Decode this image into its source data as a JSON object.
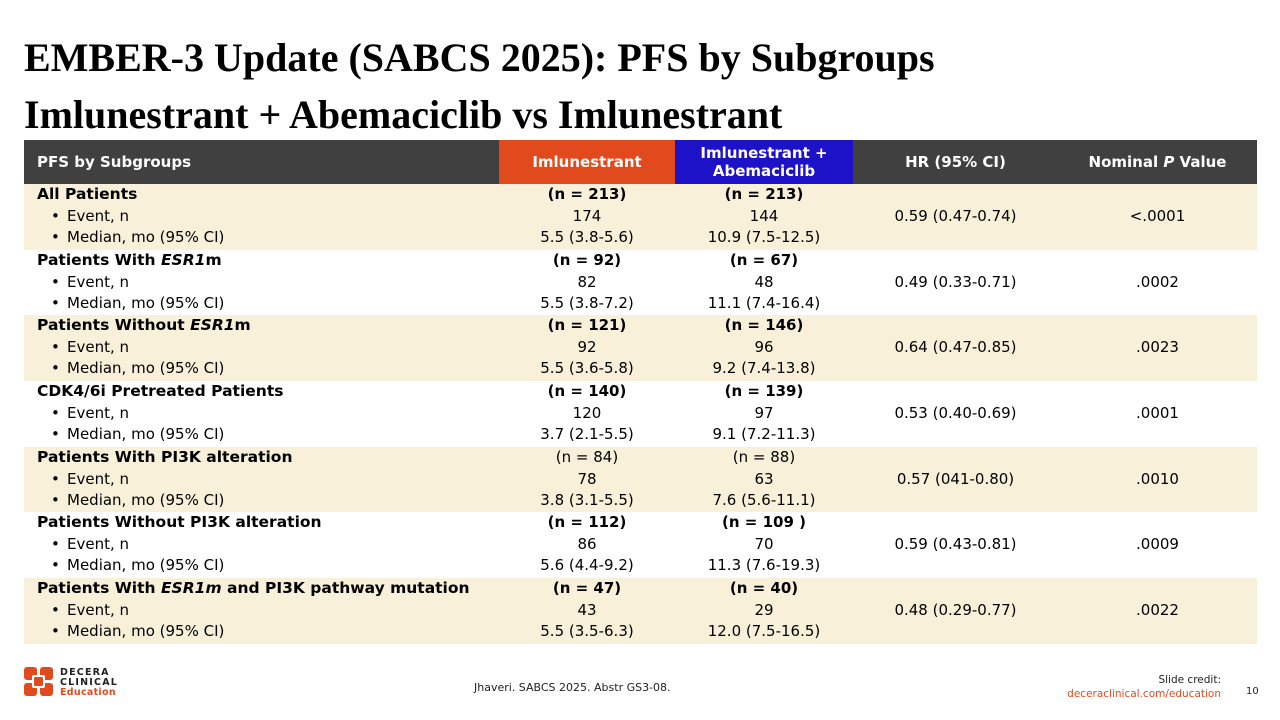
{
  "title": {
    "line1": "EMBER-3 Update (SABCS 2025): PFS by Subgroups",
    "line2": "Imlunestrant + Abemaciclib vs Imlunestrant"
  },
  "table": {
    "headers": {
      "subgroup": "PFS by Subgroups",
      "imlunestrant": "Imlunestrant",
      "combo_line1": "Imlunestrant +",
      "combo_line2": "Abemaciclib",
      "hr": "HR (95% CI)",
      "p_prefix": "Nominal ",
      "p_italic": "P",
      "p_suffix": " Value"
    },
    "bullet_event": "Event, n",
    "bullet_median": "Median, mo (95% CI)",
    "rows": [
      {
        "name_pre": "All Patients",
        "name_ital": "",
        "name_post": "",
        "n_im": "(n = 213)",
        "n_ima": "(n = 213)",
        "event_im": "174",
        "event_ima": "144",
        "median_im": "5.5 (3.8-5.6)",
        "median_ima": "10.9 (7.5-12.5)",
        "hr": "0.59 (0.47-0.74)",
        "p": "<.0001"
      },
      {
        "name_pre": "Patients With ",
        "name_ital": "ESR1",
        "name_post": "m",
        "n_im": "(n = 92)",
        "n_ima": "(n = 67)",
        "event_im": "82",
        "event_ima": "48",
        "median_im": "5.5 (3.8-7.2)",
        "median_ima": "11.1 (7.4-16.4)",
        "hr": "0.49 (0.33-0.71)",
        "p": ".0002"
      },
      {
        "name_pre": "Patients Without ",
        "name_ital": "ESR1",
        "name_post": "m",
        "n_im": "(n = 121)",
        "n_ima": "(n = 146)",
        "event_im": "92",
        "event_ima": "96",
        "median_im": "5.5 (3.6-5.8)",
        "median_ima": "9.2 (7.4-13.8)",
        "hr": "0.64 (0.47-0.85)",
        "p": ".0023"
      },
      {
        "name_pre": "CDK4/6i Pretreated Patients",
        "name_ital": "",
        "name_post": "",
        "n_im": "(n = 140)",
        "n_ima": "(n = 139)",
        "event_im": "120",
        "event_ima": "97",
        "median_im": "3.7 (2.1-5.5)",
        "median_ima": "9.1 (7.2-11.3)",
        "hr": "0.53 (0.40-0.69)",
        "p": ".0001"
      },
      {
        "name_pre": "Patients With PI3K alteration",
        "name_ital": "",
        "name_post": "",
        "n_im": "(n = 84)",
        "n_ima": "(n = 88)",
        "event_im": "78",
        "event_ima": "63",
        "median_im": "3.8 (3.1-5.5)",
        "median_ima": "7.6 (5.6-11.1)",
        "hr": "0.57 (041-0.80)",
        "p": ".0010"
      },
      {
        "name_pre": "Patients Without PI3K alteration",
        "name_ital": "",
        "name_post": "",
        "n_im": "(n = 112)",
        "n_ima": "(n = 109 )",
        "event_im": "86",
        "event_ima": "70",
        "median_im": "5.6 (4.4-9.2)",
        "median_ima": "11.3 (7.6-19.3)",
        "hr": "0.59 (0.43-0.81)",
        "p": ".0009"
      },
      {
        "name_pre": "Patients With ",
        "name_ital": "ESR1m",
        "name_post": " and PI3K pathway mutation",
        "n_im": "(n = 47)",
        "n_ima": "(n = 40)",
        "event_im": "43",
        "event_ima": "29",
        "median_im": "5.5 (3.5-6.3)",
        "median_ima": "12.0 (7.5-16.5)",
        "hr": "0.48 (0.29-0.77)",
        "p": ".0022"
      }
    ]
  },
  "footer": {
    "logo_line1": "DECERA",
    "logo_line2": "CLINICAL",
    "logo_line3": "Education",
    "reference": "Jhaveri. SABCS 2025. Abstr GS3-08.",
    "credit_label": "Slide credit:",
    "credit_url": "deceraclinical.com/education",
    "page_number": "10"
  },
  "colors": {
    "imlunestrant_header": "#e04a1c",
    "combo_header": "#1e12c8",
    "header_bg": "#404040",
    "row_shade": "#f8f0d9",
    "brand_orange": "#e04a1c"
  }
}
